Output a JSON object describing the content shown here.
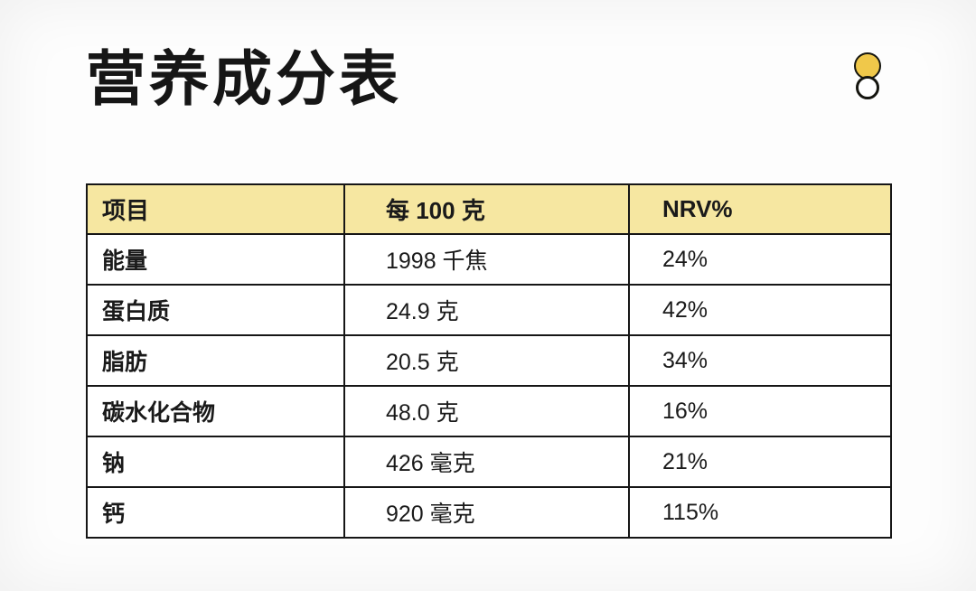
{
  "title": "营养成分表",
  "logo": {
    "description": "double-circle-logo",
    "accent_color": "#F0C84A"
  },
  "table": {
    "header_bg": "#F6E7A1",
    "border_color": "#161616",
    "headers": [
      "项目",
      "每 100 克",
      "NRV%"
    ],
    "rows": [
      {
        "item": "能量",
        "value": "1998 千焦",
        "nrv": "24%"
      },
      {
        "item": "蛋白质",
        "value": "24.9 克",
        "nrv": "42%"
      },
      {
        "item": "脂肪",
        "value": "20.5 克",
        "nrv": "34%"
      },
      {
        "item": "碳水化合物",
        "value": "48.0 克",
        "nrv": "16%"
      },
      {
        "item": "钠",
        "value": "426 毫克",
        "nrv": "21%"
      },
      {
        "item": "钙",
        "value": "920 毫克",
        "nrv": "115%"
      }
    ]
  }
}
